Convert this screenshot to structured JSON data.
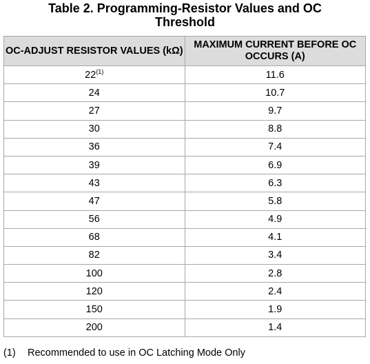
{
  "table": {
    "title_line1": "Table 2. Programming-Resistor Values and OC",
    "title_line2": "Threshold",
    "headers": [
      "OC-ADJUST RESISTOR VALUES (kΩ)",
      "MAXIMUM CURRENT BEFORE OC OCCURS (A)"
    ],
    "rows": [
      {
        "resistor": "22",
        "note": "(1)",
        "current": "11.6"
      },
      {
        "resistor": "24",
        "current": "10.7"
      },
      {
        "resistor": "27",
        "current": "9.7"
      },
      {
        "resistor": "30",
        "current": "8.8"
      },
      {
        "resistor": "36",
        "current": "7.4"
      },
      {
        "resistor": "39",
        "current": "6.9"
      },
      {
        "resistor": "43",
        "current": "6.3"
      },
      {
        "resistor": "47",
        "current": "5.8"
      },
      {
        "resistor": "56",
        "current": "4.9"
      },
      {
        "resistor": "68",
        "current": "4.1"
      },
      {
        "resistor": "82",
        "current": "3.4"
      },
      {
        "resistor": "100",
        "current": "2.8"
      },
      {
        "resistor": "120",
        "current": "2.4"
      },
      {
        "resistor": "150",
        "current": "1.9"
      },
      {
        "resistor": "200",
        "current": "1.4"
      }
    ]
  },
  "footnote": {
    "marker": "(1)",
    "text": "Recommended to use in OC Latching Mode Only"
  }
}
